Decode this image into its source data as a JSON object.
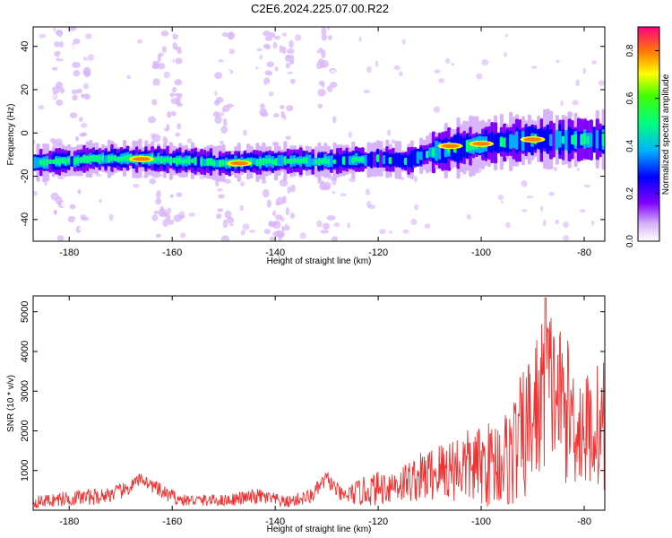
{
  "chart_data": [
    {
      "type": "heatmap",
      "title": "C2E6.2024.225.07.00.R22",
      "xlabel": "Height of straight line (km)",
      "ylabel": "Frequency (Hz)",
      "xlim": [
        -187,
        -76
      ],
      "ylim": [
        -50,
        49
      ],
      "xticks": [
        -180,
        -160,
        -140,
        -120,
        -100,
        -80
      ],
      "yticks": [
        -40,
        -20,
        0,
        20,
        40
      ],
      "colorbar": {
        "label": "Normalized spectral amplitude",
        "range": [
          0.0,
          0.9
        ],
        "ticks": [
          0.0,
          0.2,
          0.4,
          0.6,
          0.8
        ]
      },
      "ridge": {
        "description_points": [
          {
            "x": -187,
            "y": -14
          },
          {
            "x": -175,
            "y": -12
          },
          {
            "x": -165,
            "y": -12
          },
          {
            "x": -150,
            "y": -14
          },
          {
            "x": -140,
            "y": -13
          },
          {
            "x": -130,
            "y": -13
          },
          {
            "x": -120,
            "y": -12
          },
          {
            "x": -115,
            "y": -13
          },
          {
            "x": -110,
            "y": -9
          },
          {
            "x": -100,
            "y": -5
          },
          {
            "x": -90,
            "y": -3
          },
          {
            "x": -80,
            "y": -3
          },
          {
            "x": -77,
            "y": -3
          }
        ],
        "peaks": [
          {
            "x": -166,
            "y": -12,
            "amplitude": 0.85
          },
          {
            "x": -147,
            "y": -14,
            "amplitude": 0.85
          },
          {
            "x": -106,
            "y": -6,
            "amplitude": 0.85
          },
          {
            "x": -100,
            "y": -5,
            "amplitude": 0.85
          },
          {
            "x": -90,
            "y": -3,
            "amplitude": 0.8
          }
        ]
      },
      "noise_columns_x": [
        -182,
        -178,
        -163,
        -160,
        -150,
        -141,
        -138,
        -130
      ]
    },
    {
      "type": "line",
      "title": "",
      "xlabel": "Height of straight line (km)",
      "ylabel": "SNR (10 * v/v)",
      "xlim": [
        -187,
        -76
      ],
      "ylim": [
        0,
        5400
      ],
      "xticks": [
        -180,
        -160,
        -140,
        -120,
        -100,
        -80
      ],
      "yticks": [
        1000,
        2000,
        3000,
        4000,
        5000
      ],
      "color": "#ee3333",
      "envelope": [
        {
          "x": -187,
          "base": 200,
          "amp": 150
        },
        {
          "x": -180,
          "base": 300,
          "amp": 200
        },
        {
          "x": -174,
          "base": 350,
          "amp": 200
        },
        {
          "x": -169,
          "base": 500,
          "amp": 200
        },
        {
          "x": -166,
          "base": 800,
          "amp": 150
        },
        {
          "x": -162,
          "base": 450,
          "amp": 200
        },
        {
          "x": -158,
          "base": 250,
          "amp": 150
        },
        {
          "x": -150,
          "base": 250,
          "amp": 150
        },
        {
          "x": -143,
          "base": 350,
          "amp": 200
        },
        {
          "x": -138,
          "base": 200,
          "amp": 150
        },
        {
          "x": -133,
          "base": 350,
          "amp": 200
        },
        {
          "x": -130,
          "base": 800,
          "amp": 200
        },
        {
          "x": -127,
          "base": 350,
          "amp": 200
        },
        {
          "x": -122,
          "base": 500,
          "amp": 400
        },
        {
          "x": -115,
          "base": 700,
          "amp": 500
        },
        {
          "x": -110,
          "base": 900,
          "amp": 700
        },
        {
          "x": -105,
          "base": 1100,
          "amp": 900
        },
        {
          "x": -100,
          "base": 1100,
          "amp": 1000
        },
        {
          "x": -95,
          "base": 1300,
          "amp": 1300
        },
        {
          "x": -92,
          "base": 1800,
          "amp": 1700
        },
        {
          "x": -89,
          "base": 2600,
          "amp": 2000
        },
        {
          "x": -87,
          "base": 3300,
          "amp": 2000
        },
        {
          "x": -84,
          "base": 2600,
          "amp": 1900
        },
        {
          "x": -80,
          "base": 2000,
          "amp": 1500
        },
        {
          "x": -76,
          "base": 2200,
          "amp": 1700
        }
      ],
      "peak_marker": {
        "x": -87.5,
        "y": 5350
      }
    }
  ]
}
